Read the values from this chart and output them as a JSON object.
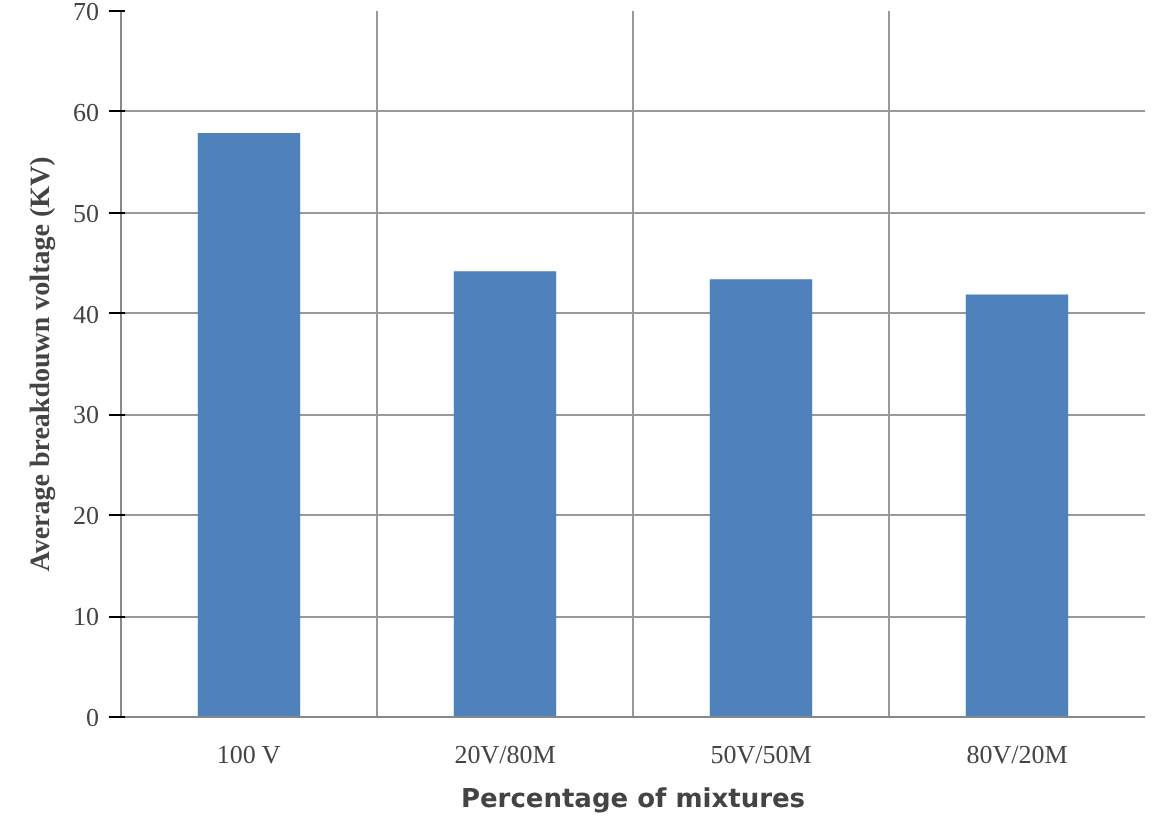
{
  "chart_data": {
    "type": "bar",
    "xlabel": "Percentage of mixtures",
    "ylabel": "Average breakdouwn voltage (KV)",
    "categories": [
      "100 V",
      "20V/80M",
      "50V/50M",
      "80V/20M"
    ],
    "values": [
      57.9,
      44.2,
      43.4,
      41.9
    ],
    "color": "#4f81bd",
    "ylim": [
      0,
      70
    ],
    "yticks": [
      0,
      10,
      20,
      30,
      40,
      50,
      60,
      70
    ],
    "grid": true
  }
}
